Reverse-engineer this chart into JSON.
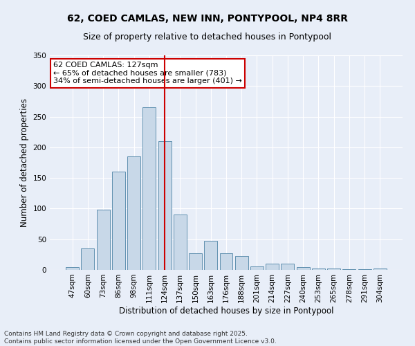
{
  "title": "62, COED CAMLAS, NEW INN, PONTYPOOL, NP4 8RR",
  "subtitle": "Size of property relative to detached houses in Pontypool",
  "xlabel": "Distribution of detached houses by size in Pontypool",
  "ylabel": "Number of detached properties",
  "categories": [
    "47sqm",
    "60sqm",
    "73sqm",
    "86sqm",
    "98sqm",
    "111sqm",
    "124sqm",
    "137sqm",
    "150sqm",
    "163sqm",
    "176sqm",
    "188sqm",
    "201sqm",
    "214sqm",
    "227sqm",
    "240sqm",
    "253sqm",
    "265sqm",
    "278sqm",
    "291sqm",
    "304sqm"
  ],
  "values": [
    5,
    35,
    98,
    160,
    185,
    265,
    210,
    90,
    27,
    47,
    27,
    23,
    6,
    10,
    10,
    4,
    2,
    2,
    1,
    1,
    2
  ],
  "bar_color": "#c8d8e8",
  "bar_edgecolor": "#6090b0",
  "vline_x": 6.0,
  "vline_color": "#cc0000",
  "annotation_text": "62 COED CAMLAS: 127sqm\n← 65% of detached houses are smaller (783)\n34% of semi-detached houses are larger (401) →",
  "annotation_box_edgecolor": "#cc0000",
  "annotation_box_facecolor": "#ffffff",
  "ylim": [
    0,
    350
  ],
  "yticks": [
    0,
    50,
    100,
    150,
    200,
    250,
    300,
    350
  ],
  "background_color": "#e8eef8",
  "plot_background_color": "#e8eef8",
  "footer": "Contains HM Land Registry data © Crown copyright and database right 2025.\nContains public sector information licensed under the Open Government Licence v3.0.",
  "title_fontsize": 10,
  "subtitle_fontsize": 9,
  "xlabel_fontsize": 8.5,
  "ylabel_fontsize": 8.5,
  "tick_fontsize": 7.5,
  "annotation_fontsize": 8,
  "footer_fontsize": 6.5
}
